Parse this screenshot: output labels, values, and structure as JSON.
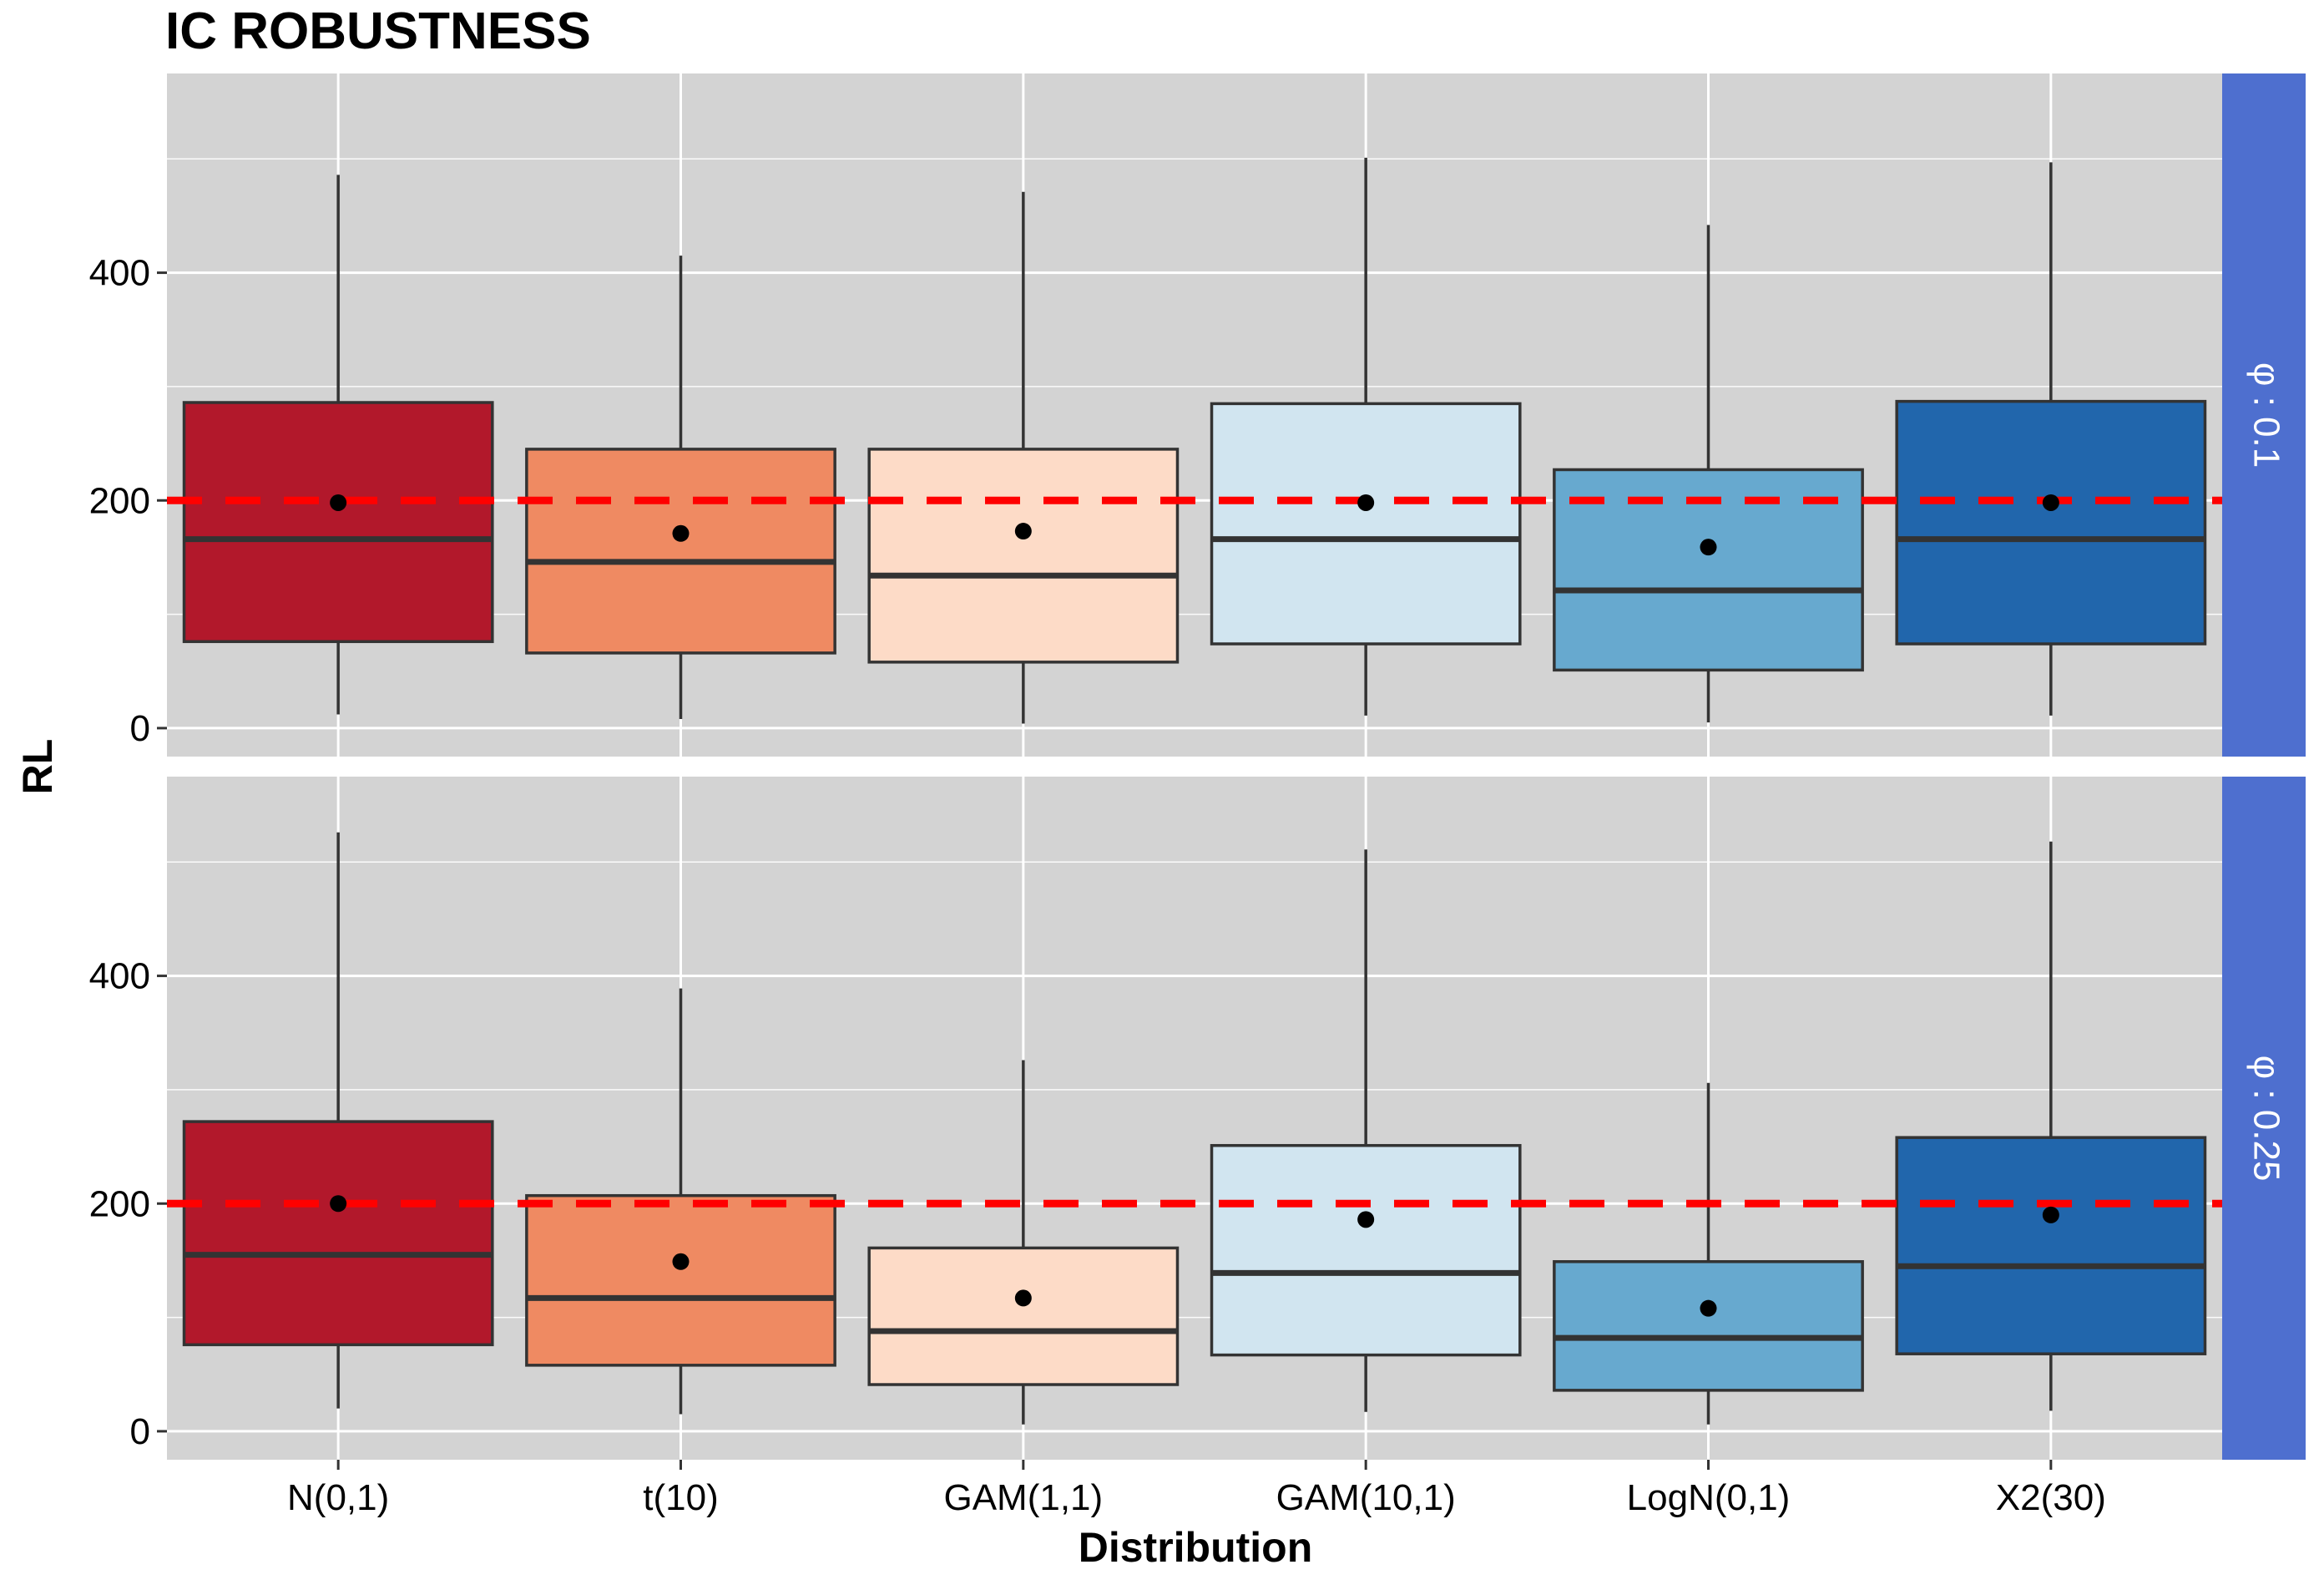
{
  "chart_data": {
    "type": "boxplot",
    "title": "IC ROBUSTNESS",
    "xlabel": "Distribution",
    "ylabel": "RL",
    "categories": [
      "N(0,1)",
      "t(10)",
      "GAM(1,1)",
      "GAM(10,1)",
      "LogN(0,1)",
      "X2(30)"
    ],
    "y_ticks": [
      0,
      200,
      400
    ],
    "ylim": [
      -25,
      575
    ],
    "reference_line": {
      "y": 200,
      "color": "#ff0000",
      "style": "dashed"
    },
    "fill_colors": [
      "#b2182b",
      "#ef8a62",
      "#fddbc7",
      "#d1e5f0",
      "#67a9cf",
      "#2166ac"
    ],
    "panel_background": "#d3d3d3",
    "strip_color": "#4e6fcf",
    "grid": true,
    "facets": [
      {
        "label": "φ : 0.1",
        "boxes": [
          {
            "category": "N(0,1)",
            "whisker_low": 12,
            "q1": 76,
            "median": 166,
            "q3": 286,
            "whisker_high": 486,
            "mean": 198
          },
          {
            "category": "t(10)",
            "whisker_low": 8,
            "q1": 66,
            "median": 146,
            "q3": 245,
            "whisker_high": 415,
            "mean": 171
          },
          {
            "category": "GAM(1,1)",
            "whisker_low": 4,
            "q1": 58,
            "median": 134,
            "q3": 245,
            "whisker_high": 471,
            "mean": 173
          },
          {
            "category": "GAM(10,1)",
            "whisker_low": 11,
            "q1": 74,
            "median": 166,
            "q3": 285,
            "whisker_high": 501,
            "mean": 198
          },
          {
            "category": "LogN(0,1)",
            "whisker_low": 5,
            "q1": 51,
            "median": 121,
            "q3": 227,
            "whisker_high": 442,
            "mean": 159
          },
          {
            "category": "X2(30)",
            "whisker_low": 11,
            "q1": 74,
            "median": 166,
            "q3": 287,
            "whisker_high": 497,
            "mean": 198
          }
        ]
      },
      {
        "label": "φ : 0.25",
        "boxes": [
          {
            "category": "N(0,1)",
            "whisker_low": 20,
            "q1": 76,
            "median": 155,
            "q3": 272,
            "whisker_high": 526,
            "mean": 200
          },
          {
            "category": "t(10)",
            "whisker_low": 15,
            "q1": 58,
            "median": 117,
            "q3": 207,
            "whisker_high": 389,
            "mean": 149
          },
          {
            "category": "GAM(1,1)",
            "whisker_low": 6,
            "q1": 41,
            "median": 88,
            "q3": 161,
            "whisker_high": 326,
            "mean": 117
          },
          {
            "category": "GAM(10,1)",
            "whisker_low": 17,
            "q1": 67,
            "median": 139,
            "q3": 251,
            "whisker_high": 511,
            "mean": 186
          },
          {
            "category": "LogN(0,1)",
            "whisker_low": 6,
            "q1": 36,
            "median": 82,
            "q3": 149,
            "whisker_high": 306,
            "mean": 108
          },
          {
            "category": "X2(30)",
            "whisker_low": 18,
            "q1": 68,
            "median": 145,
            "q3": 258,
            "whisker_high": 518,
            "mean": 190
          }
        ]
      }
    ]
  }
}
